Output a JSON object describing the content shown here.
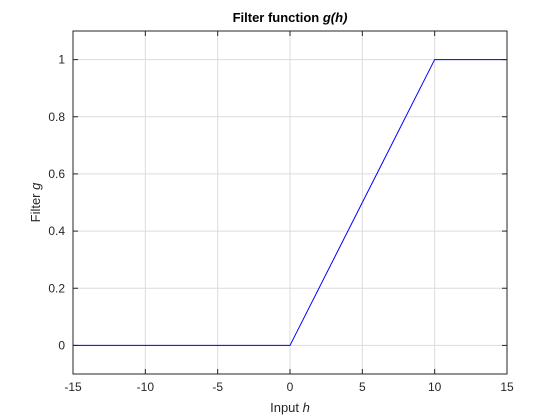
{
  "chart_data": {
    "type": "line",
    "title": {
      "text": "Filter function ",
      "italic": "g(h)"
    },
    "xlabel": {
      "text": "Input ",
      "italic": "h"
    },
    "ylabel": {
      "text": "Filter ",
      "italic": "g"
    },
    "xlim": [
      -15,
      15
    ],
    "ylim": [
      -0.1,
      1.1
    ],
    "xticks": [
      -15,
      -10,
      -5,
      0,
      5,
      10,
      15
    ],
    "xtick_labels": [
      "-15",
      "-10",
      "-5",
      "0",
      "5",
      "10",
      "15"
    ],
    "yticks": [
      0,
      0.2,
      0.4,
      0.6,
      0.8,
      1
    ],
    "ytick_labels": [
      "0",
      "0.2",
      "0.4",
      "0.6",
      "0.8",
      "1"
    ],
    "grid": true,
    "series": [
      {
        "x": [
          -15,
          0,
          10,
          15
        ],
        "y": [
          0,
          0,
          1,
          1
        ],
        "color": "#0000ff"
      }
    ]
  }
}
